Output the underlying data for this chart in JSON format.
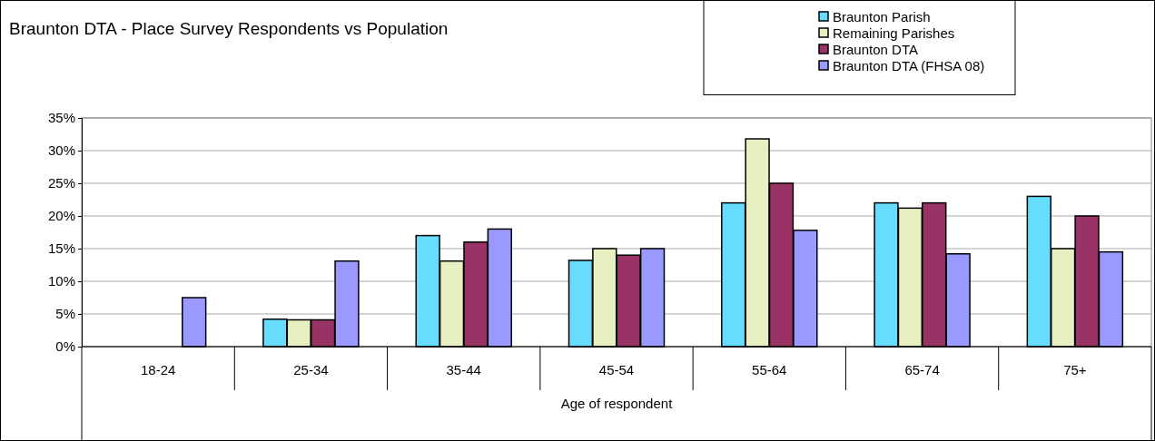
{
  "chart_data": {
    "type": "bar",
    "title": "Braunton DTA - Place Survey Respondents vs Population",
    "xlabel": "Age of respondent",
    "categories": [
      "18-24",
      "25-34",
      "35-44",
      "45-54",
      "55-64",
      "65-74",
      "75+"
    ],
    "series": [
      {
        "name": "Braunton Parish",
        "color": "#66ddff",
        "values": [
          0,
          4.2,
          17.0,
          13.2,
          22.0,
          22.0,
          23.0
        ]
      },
      {
        "name": "Remaining Parishes",
        "color": "#e6f0c0",
        "values": [
          0,
          4.1,
          13.1,
          15.0,
          31.8,
          21.2,
          15.0
        ]
      },
      {
        "name": "Braunton DTA",
        "color": "#993366",
        "values": [
          0,
          4.1,
          16.0,
          14.0,
          25.0,
          22.0,
          20.0
        ]
      },
      {
        "name": "Braunton DTA (FHSA 08)",
        "color": "#9999ff",
        "values": [
          7.5,
          13.1,
          18.0,
          15.0,
          17.8,
          14.2,
          14.5
        ]
      }
    ],
    "ylim": [
      0,
      35
    ],
    "yticks": [
      {
        "value": 0,
        "label": "0%"
      },
      {
        "value": 5,
        "label": "5%"
      },
      {
        "value": 10,
        "label": "10%"
      },
      {
        "value": 15,
        "label": "15%"
      },
      {
        "value": 20,
        "label": "20%"
      },
      {
        "value": 25,
        "label": "25%"
      },
      {
        "value": 30,
        "label": "30%"
      },
      {
        "value": 35,
        "label": "35%"
      }
    ],
    "grid": "y",
    "legend": "top right"
  }
}
